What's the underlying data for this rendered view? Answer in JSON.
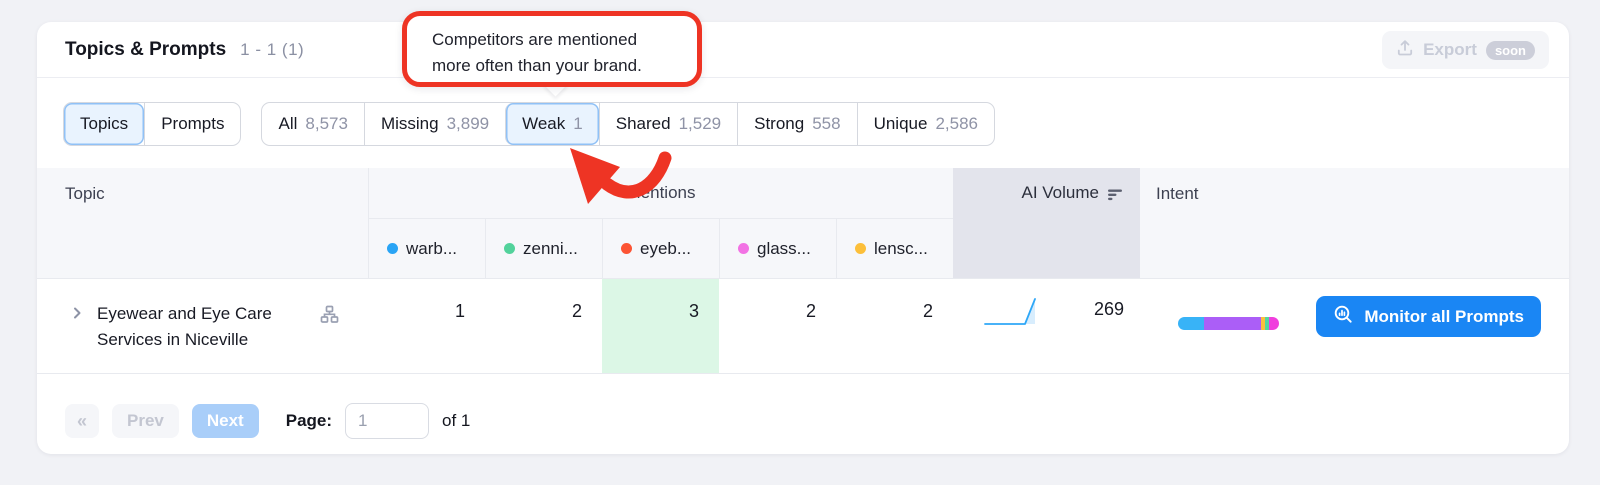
{
  "header": {
    "title": "Topics & Prompts",
    "range": "1 - 1 (1)",
    "export": {
      "label": "Export",
      "badge": "soon"
    }
  },
  "callout": {
    "line1": "Competitors are mentioned",
    "line2": "more often than your brand.",
    "accent_color": "#ee3424"
  },
  "view_toggle": {
    "items": [
      {
        "label": "Topics",
        "selected": true
      },
      {
        "label": "Prompts",
        "selected": false
      }
    ]
  },
  "filters": {
    "items": [
      {
        "label": "All",
        "count": "8,573",
        "selected": false
      },
      {
        "label": "Missing",
        "count": "3,899",
        "selected": false
      },
      {
        "label": "Weak",
        "count": "1",
        "selected": true
      },
      {
        "label": "Shared",
        "count": "1,529",
        "selected": false
      },
      {
        "label": "Strong",
        "count": "558",
        "selected": false
      },
      {
        "label": "Unique",
        "count": "2,586",
        "selected": false
      }
    ]
  },
  "table": {
    "headers": {
      "topic": "Topic",
      "mentions": "Mentions",
      "ai_volume": "AI Volume",
      "intent": "Intent"
    },
    "brands": [
      {
        "label": "warb...",
        "color": "#29a4f5"
      },
      {
        "label": "zenni...",
        "color": "#52d29b"
      },
      {
        "label": "eyeb...",
        "color": "#fc5434"
      },
      {
        "label": "glass...",
        "color": "#f272e4"
      },
      {
        "label": "lensc...",
        "color": "#fcbf3a"
      }
    ],
    "row": {
      "topic": "Eyewear and Eye Care Services in Niceville",
      "mentions": [
        "1",
        "2",
        "3",
        "2",
        "2"
      ],
      "highlight_color": "#dcf7e6",
      "ai_volume": "269",
      "intent_bar": [
        {
          "color": "#38b3f7",
          "pct": 26
        },
        {
          "color": "#ab5ef7",
          "pct": 56
        },
        {
          "color": "#fcc03c",
          "pct": 4
        },
        {
          "color": "#54d6a0",
          "pct": 4
        },
        {
          "color": "#f03edd",
          "pct": 10
        }
      ],
      "action_label": "Monitor all Prompts"
    }
  },
  "pagination": {
    "first": "«",
    "prev": "Prev",
    "next": "Next",
    "page_label": "Page:",
    "page_value": "1",
    "of_label": "of 1"
  }
}
